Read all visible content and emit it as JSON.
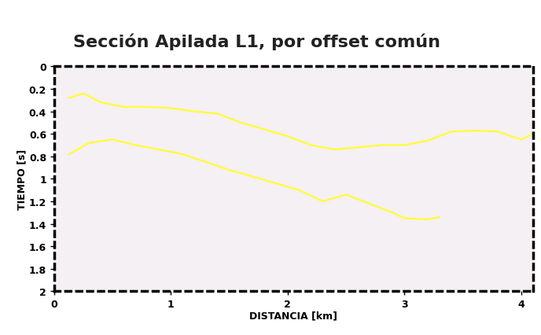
{
  "chart_data": {
    "type": "line",
    "title": "Sección Apilada L1, por offset común",
    "x_label": "DISTANCIA [km]",
    "y_label": "TIEMPO [s]",
    "xlim": [
      0,
      4.1
    ],
    "ylim": [
      2,
      0
    ],
    "xticks": [
      0,
      1,
      2,
      3,
      4
    ],
    "yticks": [
      0,
      0.2,
      0.4,
      0.6,
      0.8,
      1,
      1.2,
      1.4,
      1.6,
      1.8,
      2
    ],
    "grid": false,
    "series": [
      {
        "color": "#ffff33",
        "x": [
          0.13,
          0.25,
          0.4,
          0.6,
          0.8,
          1.0,
          1.2,
          1.4,
          1.6,
          1.8,
          2.0,
          2.2,
          2.4,
          2.6,
          2.8,
          3.0,
          3.2,
          3.4,
          3.6,
          3.8,
          4.0,
          4.1
        ],
        "values": [
          0.28,
          0.24,
          0.32,
          0.36,
          0.36,
          0.37,
          0.4,
          0.42,
          0.5,
          0.56,
          0.62,
          0.7,
          0.74,
          0.72,
          0.7,
          0.7,
          0.66,
          0.58,
          0.57,
          0.58,
          0.65,
          0.6
        ]
      },
      {
        "color": "#ffff33",
        "x": [
          0.13,
          0.3,
          0.5,
          0.7,
          0.9,
          1.1,
          1.3,
          1.5,
          1.7,
          1.9,
          2.1,
          2.3,
          2.5,
          2.7,
          2.9,
          3.0,
          3.2,
          3.3
        ],
        "values": [
          0.78,
          0.68,
          0.65,
          0.7,
          0.74,
          0.78,
          0.85,
          0.92,
          0.98,
          1.04,
          1.1,
          1.2,
          1.14,
          1.22,
          1.3,
          1.35,
          1.36,
          1.34
        ]
      }
    ]
  }
}
